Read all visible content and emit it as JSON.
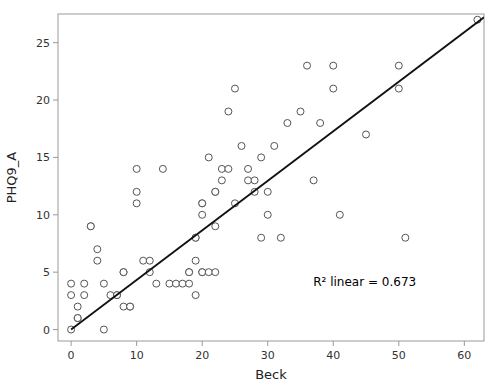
{
  "chart_data": {
    "type": "scatter",
    "xlabel": "Beck",
    "ylabel": "PHQ9_A",
    "xlim": [
      -2,
      63
    ],
    "ylim": [
      -1,
      27.5
    ],
    "xticks": [
      0,
      10,
      20,
      30,
      40,
      50,
      60
    ],
    "yticks": [
      0,
      5,
      10,
      15,
      20,
      25
    ],
    "grid": false,
    "annotation": "R² linear = 0.673",
    "series": [
      {
        "type": "scatter",
        "marker": "circle",
        "color": "#555555",
        "x": [
          0,
          0,
          0,
          1,
          1,
          1,
          2,
          2,
          3,
          3,
          4,
          4,
          5,
          5,
          6,
          7,
          7,
          8,
          8,
          8,
          9,
          9,
          10,
          10,
          10,
          11,
          12,
          12,
          13,
          14,
          15,
          16,
          17,
          18,
          18,
          18,
          19,
          19,
          19,
          19,
          20,
          20,
          20,
          20,
          20,
          21,
          21,
          22,
          22,
          22,
          22,
          23,
          23,
          24,
          24,
          25,
          25,
          26,
          27,
          27,
          28,
          28,
          29,
          29,
          30,
          30,
          31,
          32,
          33,
          35,
          36,
          37,
          38,
          40,
          40,
          41,
          45,
          50,
          50,
          51,
          62
        ],
        "values": [
          4,
          3,
          0,
          2,
          1,
          1,
          4,
          3,
          9,
          9,
          7,
          6,
          0,
          4,
          3,
          3,
          3,
          5,
          5,
          2,
          2,
          2,
          11,
          12,
          14,
          6,
          5,
          6,
          4,
          14,
          4,
          4,
          4,
          5,
          5,
          4,
          8,
          8,
          6,
          3,
          11,
          11,
          10,
          5,
          5,
          5,
          15,
          12,
          12,
          9,
          5,
          14,
          13,
          14,
          19,
          11,
          21,
          16,
          13,
          14,
          13,
          12,
          15,
          8,
          12,
          10,
          16,
          8,
          18,
          19,
          23,
          13,
          18,
          21,
          23,
          10,
          17,
          21,
          23,
          8,
          27
        ]
      },
      {
        "type": "line",
        "line_style": "solid",
        "color": "#111111",
        "x": [
          0,
          63
        ],
        "values": [
          0,
          27.216
        ]
      }
    ]
  }
}
